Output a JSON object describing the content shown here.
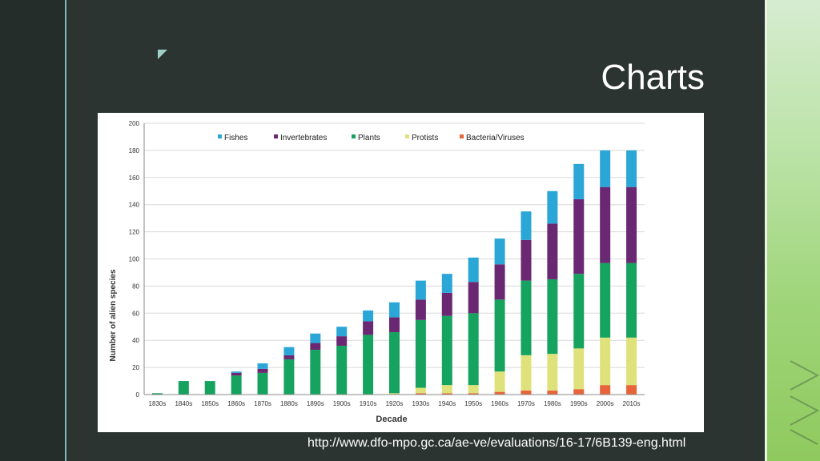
{
  "slide": {
    "title": "Charts",
    "source": "http://www.dfo-mpo.gc.ca/ae-ve/evaluations/16-17/6B139-eng.html"
  },
  "chart_data": {
    "type": "bar",
    "stacked": true,
    "xlabel": "Decade",
    "ylabel": "Number of alien species",
    "ylim": [
      0,
      200
    ],
    "yticks": [
      0,
      20,
      40,
      60,
      80,
      100,
      120,
      140,
      160,
      180,
      200
    ],
    "grid": true,
    "legend": "top",
    "categories": [
      "1830s",
      "1840s",
      "1850s",
      "1860s",
      "1870s",
      "1880s",
      "1890s",
      "1900s",
      "1910s",
      "1920s",
      "1930s",
      "1940s",
      "1950s",
      "1960s",
      "1970s",
      "1980s",
      "1990s",
      "2000s",
      "2010s"
    ],
    "series": [
      {
        "name": "Bacteria/Viruses",
        "color": "#e8643a",
        "values": [
          0,
          0,
          0,
          0,
          0,
          0,
          0,
          0,
          0,
          0,
          1,
          1,
          1,
          2,
          3,
          3,
          4,
          7,
          7
        ]
      },
      {
        "name": "Protists",
        "color": "#dfe27a",
        "values": [
          0,
          0,
          0,
          0,
          0,
          0,
          0,
          0,
          0,
          1,
          4,
          6,
          6,
          15,
          26,
          27,
          30,
          35,
          35
        ]
      },
      {
        "name": "Plants",
        "color": "#16a35f",
        "values": [
          1,
          10,
          10,
          14,
          16,
          26,
          33,
          36,
          44,
          45,
          50,
          51,
          53,
          53,
          55,
          55,
          55,
          55,
          55
        ]
      },
      {
        "name": "Invertebrates",
        "color": "#6a2872",
        "values": [
          0,
          0,
          0,
          2,
          3,
          3,
          5,
          7,
          10,
          11,
          15,
          17,
          23,
          26,
          30,
          41,
          55,
          56,
          56
        ]
      },
      {
        "name": "Fishes",
        "color": "#2aa7d6",
        "values": [
          0,
          0,
          0,
          1,
          4,
          6,
          7,
          7,
          8,
          11,
          14,
          14,
          18,
          19,
          21,
          24,
          26,
          27,
          27
        ]
      }
    ],
    "legend_order": [
      "Fishes",
      "Invertebrates",
      "Plants",
      "Protists",
      "Bacteria/Viruses"
    ]
  }
}
